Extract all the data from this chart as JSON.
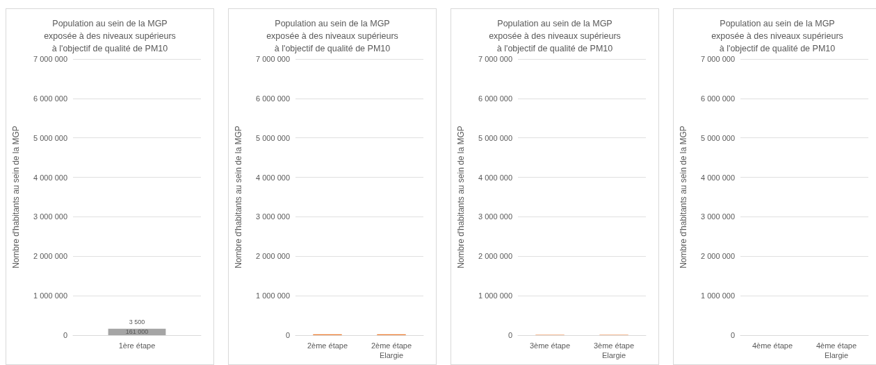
{
  "chart_data": [
    {
      "type": "bar",
      "title": "Population au sein de la MGP\nexposée à des niveaux supérieurs\nà l'objectif de qualité de PM10",
      "ylabel": "Nombre d'habitants au sein de la MGP",
      "categories": [
        "1ère étape"
      ],
      "stacked": true,
      "grid": "y",
      "legend": false,
      "ylim": [
        0,
        7000000
      ],
      "yticks": [
        {
          "value": 0,
          "label": "0"
        },
        {
          "value": 1000000,
          "label": "1 000 000"
        },
        {
          "value": 2000000,
          "label": "2 000 000"
        },
        {
          "value": 3000000,
          "label": "3 000 000"
        },
        {
          "value": 4000000,
          "label": "4 000 000"
        },
        {
          "value": 5000000,
          "label": "5 000 000"
        },
        {
          "value": 6000000,
          "label": "6 000 000"
        },
        {
          "value": 7000000,
          "label": "7 000 000"
        }
      ],
      "series": [
        {
          "color": "#a5a5a5",
          "values": [
            161000
          ],
          "value_labels": [
            "161 000"
          ]
        },
        {
          "color": "#ed7d31",
          "values": [
            3500
          ],
          "value_labels": [
            "3 500"
          ]
        }
      ]
    },
    {
      "type": "bar",
      "title": "Population au sein de la MGP\nexposée à des niveaux supérieurs\nà l'objectif de qualité de PM10",
      "ylabel": "Nombre d'habitants au sein de la MGP",
      "categories": [
        "2ème étape",
        "2ème étape\nElargie"
      ],
      "stacked": true,
      "grid": "y",
      "legend": false,
      "ylim": [
        0,
        7000000
      ],
      "yticks": [
        {
          "value": 0,
          "label": "0"
        },
        {
          "value": 1000000,
          "label": "1 000 000"
        },
        {
          "value": 2000000,
          "label": "2 000 000"
        },
        {
          "value": 3000000,
          "label": "3 000 000"
        },
        {
          "value": 4000000,
          "label": "4 000 000"
        },
        {
          "value": 5000000,
          "label": "5 000 000"
        },
        {
          "value": 6000000,
          "label": "6 000 000"
        },
        {
          "value": 7000000,
          "label": "7 000 000"
        }
      ],
      "series": [
        {
          "color": "#ed7d31",
          "values": [
            20000,
            20000
          ]
        }
      ]
    },
    {
      "type": "bar",
      "title": "Population au sein de la MGP\nexposée à des niveaux supérieurs\nà l'objectif de qualité de PM10",
      "ylabel": "Nombre d'habitants au sein de la MGP",
      "categories": [
        "3ème étape",
        "3ème étape\nElargie"
      ],
      "stacked": true,
      "grid": "y",
      "legend": false,
      "ylim": [
        0,
        7000000
      ],
      "yticks": [
        {
          "value": 0,
          "label": "0"
        },
        {
          "value": 1000000,
          "label": "1 000 000"
        },
        {
          "value": 2000000,
          "label": "2 000 000"
        },
        {
          "value": 3000000,
          "label": "3 000 000"
        },
        {
          "value": 4000000,
          "label": "4 000 000"
        },
        {
          "value": 5000000,
          "label": "5 000 000"
        },
        {
          "value": 6000000,
          "label": "6 000 000"
        },
        {
          "value": 7000000,
          "label": "7 000 000"
        }
      ],
      "series": [
        {
          "color": "#ed7d31",
          "values": [
            10000,
            10000
          ]
        }
      ]
    },
    {
      "type": "bar",
      "title": "Population au sein de la MGP\nexposée à des niveaux supérieurs\nà l'objectif de qualité de PM10",
      "ylabel": "Nombre d'habitants au sein de la MGP",
      "categories": [
        "4ème étape",
        "4ème étape\nElargie"
      ],
      "stacked": true,
      "grid": "y",
      "legend": false,
      "ylim": [
        0,
        7000000
      ],
      "yticks": [
        {
          "value": 0,
          "label": "0"
        },
        {
          "value": 1000000,
          "label": "1 000 000"
        },
        {
          "value": 2000000,
          "label": "2 000 000"
        },
        {
          "value": 3000000,
          "label": "3 000 000"
        },
        {
          "value": 4000000,
          "label": "4 000 000"
        },
        {
          "value": 5000000,
          "label": "5 000 000"
        },
        {
          "value": 6000000,
          "label": "6 000 000"
        },
        {
          "value": 7000000,
          "label": "7 000 000"
        }
      ],
      "series": [
        {
          "color": "#ed7d31",
          "values": [
            null,
            null
          ]
        }
      ]
    }
  ]
}
